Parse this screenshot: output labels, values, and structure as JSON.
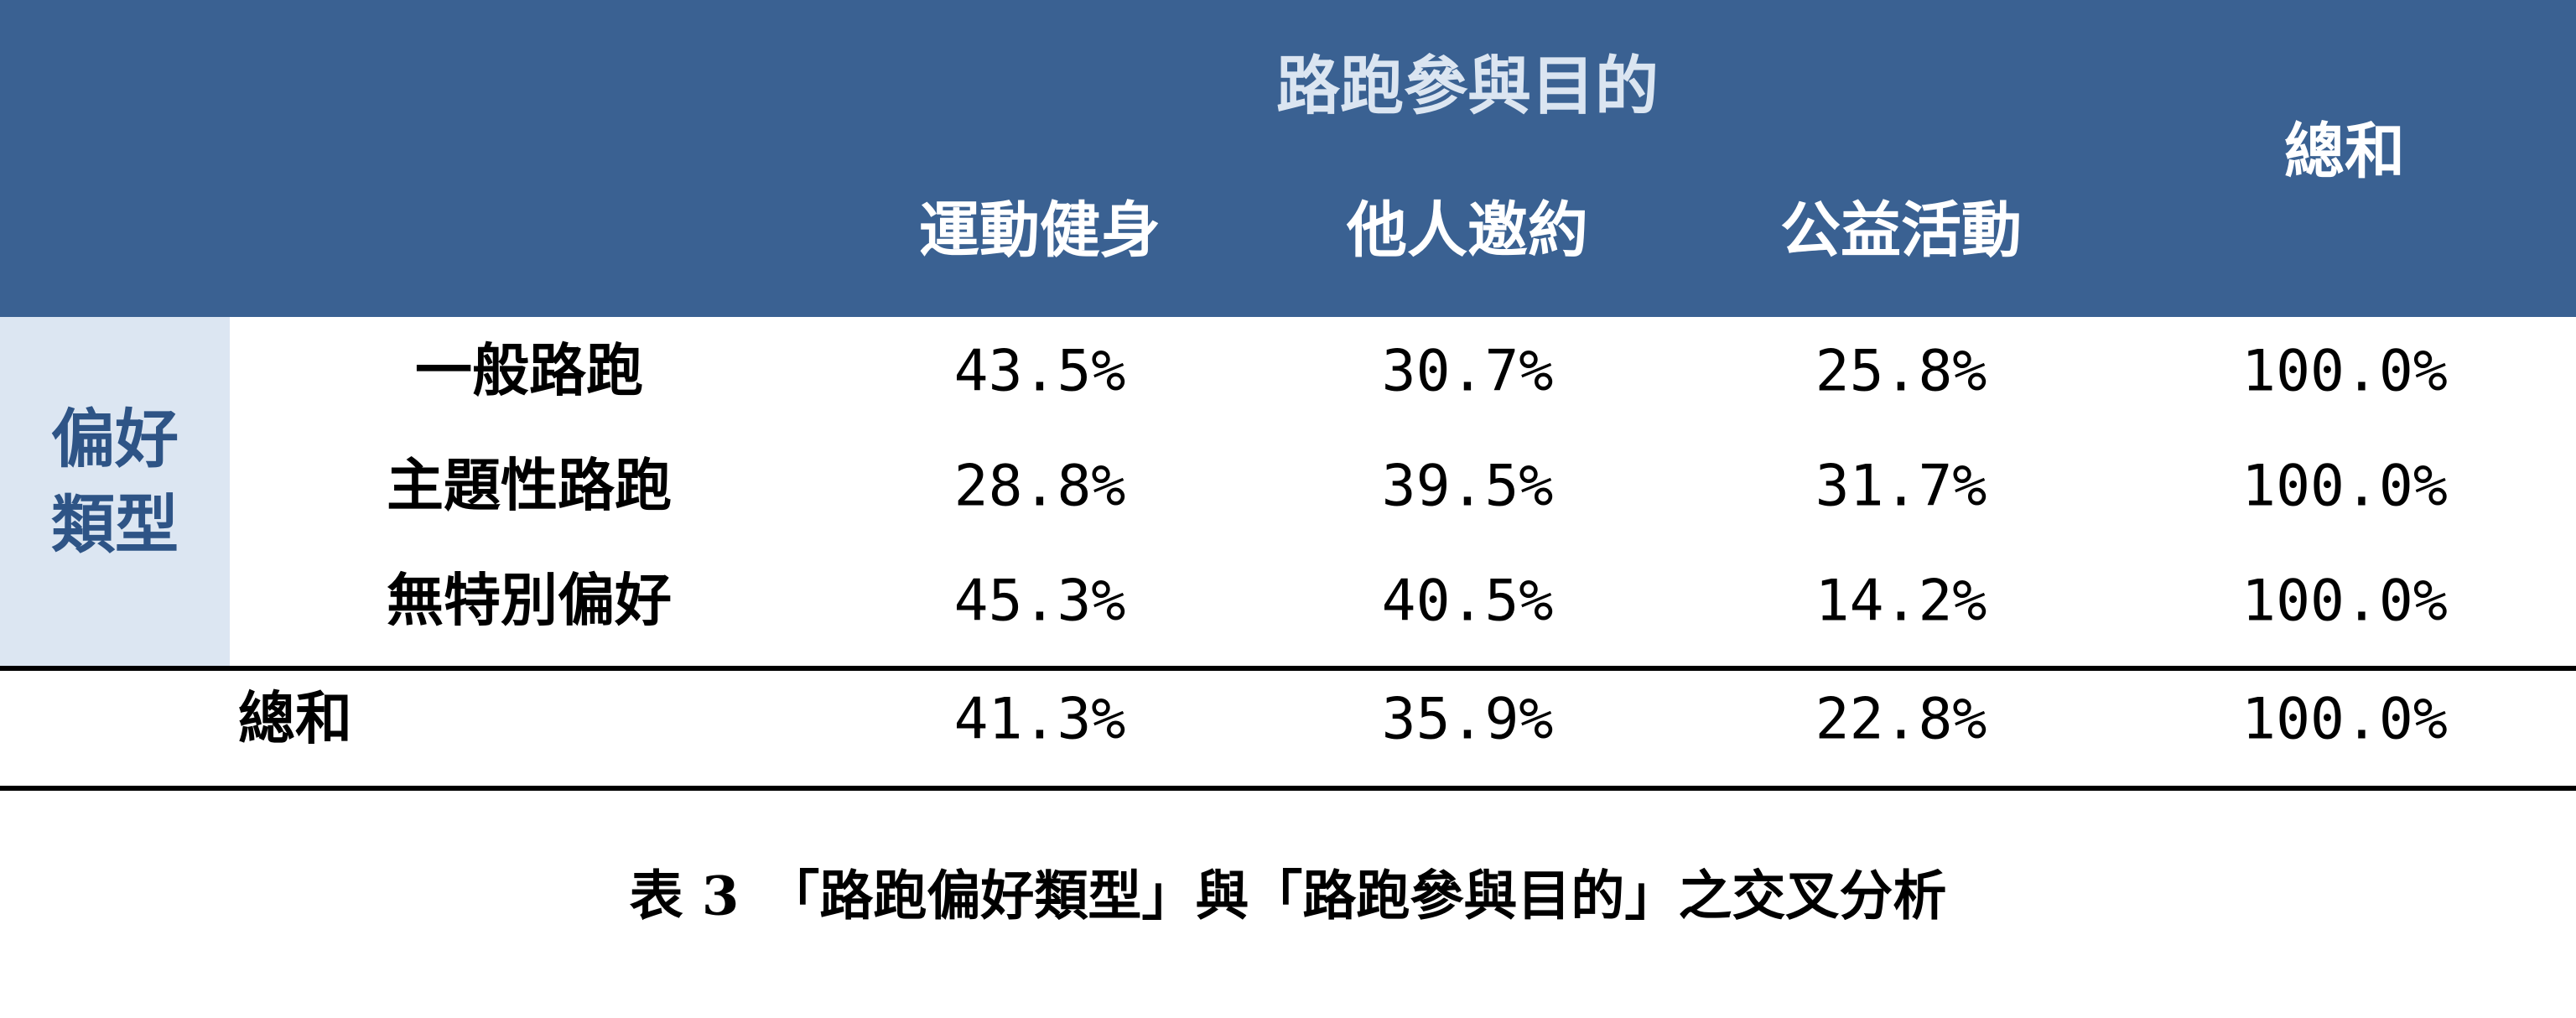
{
  "table": {
    "group_header": "路跑參與目的",
    "total_header": "總和",
    "columns": [
      "運動健身",
      "他人邀約",
      "公益活動"
    ],
    "row_group": [
      "偏好",
      "類型"
    ],
    "rows": [
      {
        "label": "一般路跑",
        "values": [
          "43.5%",
          "30.7%",
          "25.8%",
          "100.0%"
        ]
      },
      {
        "label": "主題性路跑",
        "values": [
          "28.8%",
          "39.5%",
          "31.7%",
          "100.0%"
        ]
      },
      {
        "label": "無特別偏好",
        "values": [
          "45.3%",
          "40.5%",
          "14.2%",
          "100.0%"
        ]
      }
    ],
    "total_row": {
      "label": "總和",
      "values": [
        "41.3%",
        "35.9%",
        "22.8%",
        "100.0%"
      ]
    }
  },
  "caption": "表 3　「路跑偏好類型」與「路跑參與目的」之交叉分析"
}
